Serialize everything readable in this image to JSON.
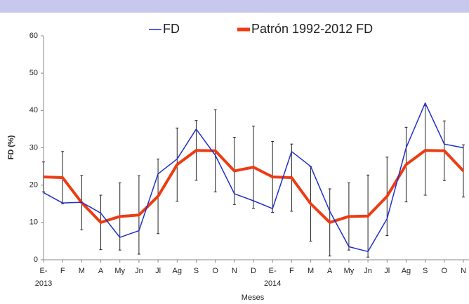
{
  "chart_data": {
    "type": "line",
    "categories": [
      "E-",
      "F",
      "M",
      "A",
      "My",
      "Jn",
      "Jl",
      "Ag",
      "S",
      "O",
      "N",
      "D",
      "E-",
      "F",
      "M",
      "A",
      "My",
      "Jn",
      "Jl",
      "Ag",
      "S",
      "O",
      "N"
    ],
    "year_labels": [
      "2013",
      null,
      null,
      null,
      null,
      null,
      null,
      null,
      null,
      null,
      null,
      null,
      "2014",
      null,
      null,
      null,
      null,
      null,
      null,
      null,
      null,
      null,
      null
    ],
    "x_label": "Meses",
    "y_label": "FD (%)",
    "ylim": [
      0,
      60
    ],
    "yticks": [
      0,
      10,
      20,
      30,
      40,
      50,
      60
    ],
    "series": [
      {
        "name": "FD",
        "color": "#1f2fc8",
        "values": [
          18,
          15.2,
          15.4,
          12.5,
          6,
          7.8,
          23,
          27,
          35,
          28,
          17.7,
          15.8,
          13.7,
          29,
          25,
          13,
          3.5,
          2.2,
          11,
          30,
          42,
          31,
          30
        ]
      },
      {
        "name": "Patrón 1992-2012 FD",
        "color": "#ee3b12",
        "values": [
          22.2,
          22,
          15.3,
          10,
          11.6,
          12,
          17,
          25.5,
          29.3,
          29.2,
          23.8,
          24.8,
          22.2,
          22,
          15,
          10,
          11.6,
          11.7,
          17,
          25.5,
          29.3,
          29.2,
          23.8
        ],
        "errors": [
          4,
          7,
          7.3,
          7.3,
          9,
          10.5,
          10,
          9.8,
          8,
          11,
          9,
          11,
          9.5,
          9,
          10,
          9,
          9,
          11,
          10.5,
          10,
          12,
          8,
          7
        ]
      }
    ]
  }
}
